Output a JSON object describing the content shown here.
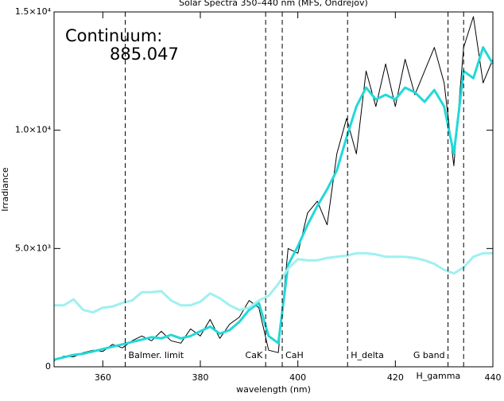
{
  "chart_data": {
    "type": "line",
    "title": "Solar Spectra 350–440 nm (MFS, Ondrejov)",
    "xlabel": "wavelength (nm)",
    "ylabel": "Irradiance",
    "annotations": [
      "Continuum:",
      "885.047"
    ],
    "x": [
      350,
      352,
      354,
      356,
      358,
      360,
      362,
      364,
      366,
      368,
      370,
      372,
      374,
      376,
      378,
      380,
      382,
      384,
      386,
      388,
      390,
      392,
      394,
      396,
      398,
      400,
      402,
      404,
      406,
      408,
      410,
      412,
      414,
      416,
      418,
      420,
      422,
      424,
      426,
      428,
      430,
      432,
      434,
      436,
      438,
      440
    ],
    "series": [
      {
        "name": "spectrum",
        "color": "#000000",
        "width": 1,
        "values": [
          250,
          450,
          420,
          600,
          700,
          650,
          950,
          800,
          1100,
          1300,
          1100,
          1500,
          1100,
          1000,
          1600,
          1300,
          2000,
          1200,
          1800,
          2100,
          2800,
          2500,
          700,
          600,
          5000,
          4800,
          6500,
          7000,
          6000,
          9000,
          10500,
          9000,
          12500,
          11000,
          12800,
          11000,
          13000,
          11500,
          12500,
          13500,
          12000,
          8500,
          13500,
          14800,
          12000,
          13000
        ]
      },
      {
        "name": "smoothed",
        "color": "#22d8d8",
        "width": 3,
        "values": [
          300,
          400,
          500,
          550,
          650,
          750,
          850,
          950,
          1050,
          1150,
          1250,
          1200,
          1350,
          1200,
          1300,
          1500,
          1700,
          1400,
          1550,
          1900,
          2400,
          2700,
          1300,
          1000,
          4300,
          5100,
          6000,
          6800,
          7500,
          8300,
          9700,
          11000,
          11800,
          11300,
          11500,
          11300,
          11800,
          11600,
          11200,
          11700,
          11000,
          9000,
          12500,
          12200,
          13500,
          12800
        ]
      },
      {
        "name": "continuum",
        "color": "#9ff0f0",
        "width": 3,
        "values": [
          2600,
          2600,
          2850,
          2400,
          2300,
          2500,
          2550,
          2700,
          2800,
          3150,
          3150,
          3200,
          2800,
          2600,
          2600,
          2750,
          3100,
          2900,
          2600,
          2400,
          2500,
          2800,
          3000,
          3500,
          4150,
          4550,
          4500,
          4500,
          4600,
          4650,
          4700,
          4800,
          4800,
          4750,
          4650,
          4650,
          4650,
          4600,
          4500,
          4350,
          4100,
          3950,
          4200,
          4650,
          4800,
          4800
        ]
      }
    ],
    "lines": [
      {
        "x": 364.6,
        "label": "Balmer. limit"
      },
      {
        "x": 393.4,
        "label": "CaK"
      },
      {
        "x": 396.8,
        "label": "CaH"
      },
      {
        "x": 410.2,
        "label": "H_delta"
      },
      {
        "x": 430.8,
        "label": "G band"
      },
      {
        "x": 434.0,
        "label": "H_gamma"
      }
    ],
    "xlim": [
      350,
      440
    ],
    "xticks": [
      360,
      380,
      400,
      420,
      440
    ],
    "ylim": [
      0,
      15000
    ],
    "yticks": [
      {
        "value": 0,
        "label": "0"
      },
      {
        "value": 5000,
        "label": "5.0×10³"
      },
      {
        "value": 10000,
        "label": "1.0×10⁴"
      },
      {
        "value": 15000,
        "label": "1.5×10⁴"
      }
    ],
    "grid": false
  }
}
